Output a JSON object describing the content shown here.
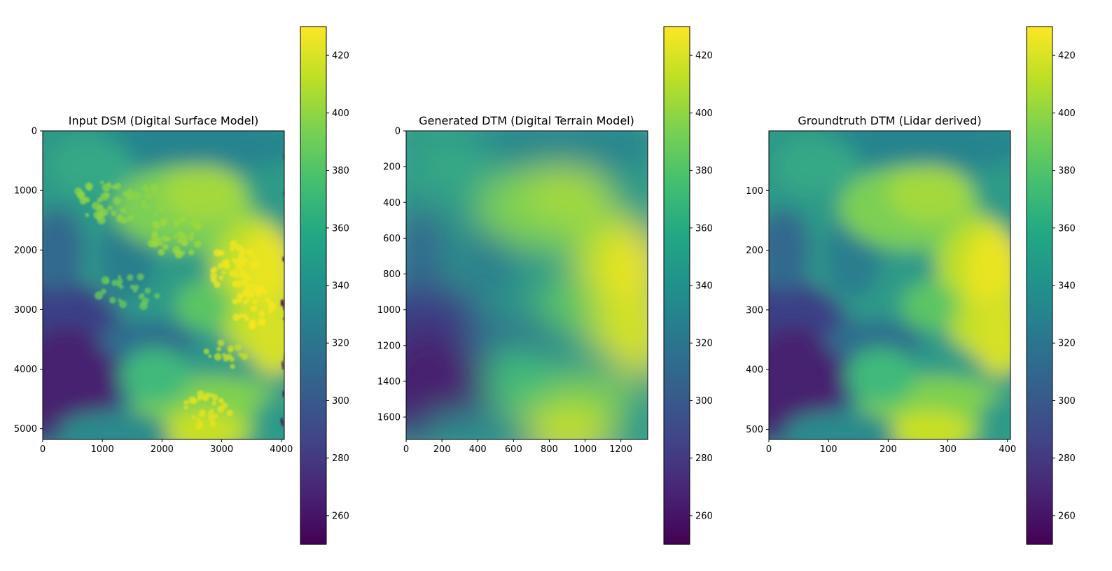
{
  "chart_data": [
    {
      "type": "heatmap",
      "title": "Input DSM (Digital Surface Model)",
      "xlabel": "",
      "ylabel": "",
      "x_ticks": [
        0,
        1000,
        2000,
        3000,
        4000
      ],
      "y_ticks": [
        0,
        1000,
        2000,
        3000,
        4000,
        5000
      ],
      "xlim": [
        0,
        4050
      ],
      "ylim": [
        5180,
        0
      ],
      "colormap": "viridis",
      "colorbar": {
        "range": [
          250,
          430
        ],
        "ticks": [
          260,
          280,
          300,
          320,
          340,
          360,
          380,
          400,
          420
        ]
      },
      "grid": false
    },
    {
      "type": "heatmap",
      "title": "Generated DTM (Digital Terrain Model)",
      "xlabel": "",
      "ylabel": "",
      "x_ticks": [
        0,
        200,
        400,
        600,
        800,
        1000,
        1200
      ],
      "y_ticks": [
        0,
        200,
        400,
        600,
        800,
        1000,
        1200,
        1400,
        1600
      ],
      "xlim": [
        0,
        1350
      ],
      "ylim": [
        1725,
        0
      ],
      "colormap": "viridis",
      "colorbar": {
        "range": [
          250,
          430
        ],
        "ticks": [
          260,
          280,
          300,
          320,
          340,
          360,
          380,
          400,
          420
        ]
      },
      "grid": false
    },
    {
      "type": "heatmap",
      "title": "Groundtruth DTM (Lidar derived)",
      "xlabel": "",
      "ylabel": "",
      "x_ticks": [
        0,
        100,
        200,
        300,
        400
      ],
      "y_ticks": [
        100,
        200,
        300,
        400,
        500
      ],
      "xlim": [
        0,
        405
      ],
      "ylim": [
        517,
        0
      ],
      "colormap": "viridis",
      "colorbar": {
        "range": [
          250,
          430
        ],
        "ticks": [
          260,
          280,
          300,
          320,
          340,
          360,
          380,
          400,
          420
        ]
      },
      "grid": false
    }
  ]
}
